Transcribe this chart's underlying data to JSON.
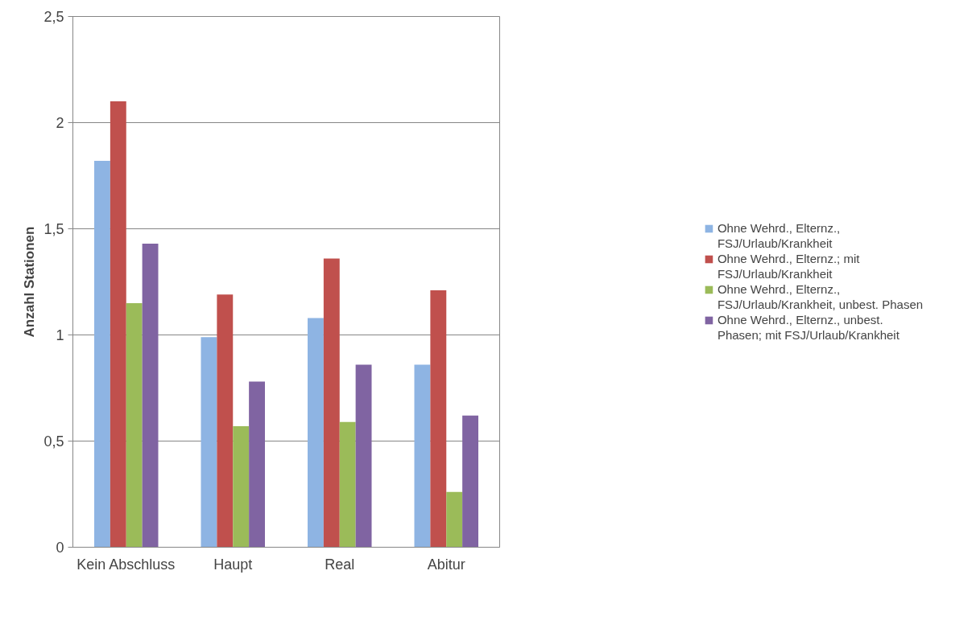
{
  "chart_data": {
    "type": "bar",
    "ylabel": "Anzahl Stationen",
    "categories": [
      "Kein Abschluss",
      "Haupt",
      "Real",
      "Abitur"
    ],
    "series": [
      {
        "name": "Ohne Wehrd., Elternz., FSJ/Urlaub/Krankheit",
        "color": "#8eb4e3",
        "values": [
          1.82,
          0.99,
          1.08,
          0.86
        ]
      },
      {
        "name": "Ohne Wehrd., Elternz.; mit FSJ/Urlaub/Krankheit",
        "color": "#c0504d",
        "values": [
          2.1,
          1.19,
          1.36,
          1.21
        ]
      },
      {
        "name": "Ohne Wehrd., Elternz., FSJ/Urlaub/Krankheit, unbest. Phasen",
        "color": "#9bbb59",
        "values": [
          1.15,
          0.57,
          0.59,
          0.26
        ]
      },
      {
        "name": "Ohne Wehrd., Elternz., unbest. Phasen; mit FSJ/Urlaub/Krankheit",
        "color": "#8064a2",
        "values": [
          1.43,
          0.78,
          0.86,
          0.62
        ]
      }
    ],
    "ylim": [
      0,
      2.5
    ],
    "yticks": [
      0,
      {
        "value": 0.5,
        "label": "0,5"
      },
      1,
      {
        "value": 1.5,
        "label": "1,5"
      },
      2,
      {
        "value": 2.5,
        "label": "2,5"
      }
    ],
    "grid": "y",
    "legend": "right"
  }
}
